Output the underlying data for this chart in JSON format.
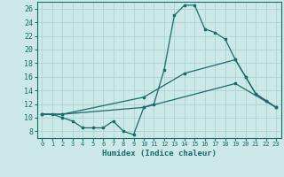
{
  "xlabel": "Humidex (Indice chaleur)",
  "bg_color": "#cce8e8",
  "line_color": "#1a6b6b",
  "grid_color": "#aad4d4",
  "xlim": [
    -0.5,
    23.5
  ],
  "ylim": [
    7,
    27
  ],
  "xticks": [
    0,
    1,
    2,
    3,
    4,
    5,
    6,
    7,
    8,
    9,
    10,
    11,
    12,
    13,
    14,
    15,
    16,
    17,
    18,
    19,
    20,
    21,
    22,
    23
  ],
  "yticks": [
    8,
    10,
    12,
    14,
    16,
    18,
    20,
    22,
    24,
    26
  ],
  "line1_x": [
    0,
    1,
    2,
    3,
    4,
    5,
    6,
    7,
    8,
    9,
    10,
    11,
    12,
    13,
    14,
    15,
    16,
    17,
    18,
    19,
    20,
    21,
    22,
    23
  ],
  "line1_y": [
    10.5,
    10.5,
    10.0,
    9.5,
    8.5,
    8.5,
    8.5,
    9.5,
    8.0,
    7.5,
    11.5,
    12.0,
    17.0,
    25.0,
    26.5,
    26.5,
    23.0,
    22.5,
    21.5,
    18.5,
    16.0,
    13.5,
    12.5,
    11.5
  ],
  "line2_x": [
    0,
    2,
    10,
    14,
    19,
    20,
    21,
    22,
    23
  ],
  "line2_y": [
    10.5,
    10.5,
    13.0,
    16.5,
    18.5,
    16.0,
    13.5,
    12.5,
    11.5
  ],
  "line3_x": [
    0,
    2,
    10,
    19,
    23
  ],
  "line3_y": [
    10.5,
    10.5,
    11.5,
    15.0,
    11.5
  ]
}
